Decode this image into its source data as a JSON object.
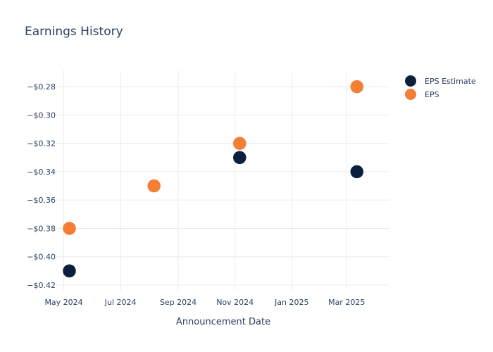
{
  "chart_data": {
    "type": "scatter",
    "title": "Earnings History",
    "xlabel": "Announcement Date",
    "ylabel": "",
    "x_ticks": [
      {
        "date": "2024-05-01",
        "label": "May 2024"
      },
      {
        "date": "2024-07-01",
        "label": "Jul 2024"
      },
      {
        "date": "2024-09-01",
        "label": "Sep 2024"
      },
      {
        "date": "2024-11-01",
        "label": "Nov 2024"
      },
      {
        "date": "2025-01-01",
        "label": "Jan 2025"
      },
      {
        "date": "2025-03-01",
        "label": "Mar 2025"
      }
    ],
    "xlim": [
      "2024-04-23",
      "2025-04-16"
    ],
    "y_ticks": [
      {
        "value": -0.28,
        "label": "−$0.28"
      },
      {
        "value": -0.3,
        "label": "−$0.30"
      },
      {
        "value": -0.32,
        "label": "−$0.32"
      },
      {
        "value": -0.34,
        "label": "−$0.34"
      },
      {
        "value": -0.36,
        "label": "−$0.36"
      },
      {
        "value": -0.38,
        "label": "−$0.38"
      },
      {
        "value": -0.4,
        "label": "−$0.40"
      },
      {
        "value": -0.42,
        "label": "−$0.42"
      }
    ],
    "ylim": [
      -0.4235,
      -0.2685
    ],
    "grid": true,
    "legend_position": "top-right",
    "series": [
      {
        "name": "EPS Estimate",
        "color": "#0b1f3f",
        "points": [
          {
            "x": "2024-05-07",
            "y": -0.41
          },
          {
            "x": "2024-08-06",
            "y": -0.35
          },
          {
            "x": "2024-11-06",
            "y": -0.33
          },
          {
            "x": "2025-03-12",
            "y": -0.34
          }
        ]
      },
      {
        "name": "EPS",
        "color": "#f47e36",
        "points": [
          {
            "x": "2024-05-07",
            "y": -0.38
          },
          {
            "x": "2024-08-06",
            "y": -0.35
          },
          {
            "x": "2024-11-06",
            "y": -0.32
          },
          {
            "x": "2025-03-12",
            "y": -0.28
          }
        ]
      }
    ]
  }
}
